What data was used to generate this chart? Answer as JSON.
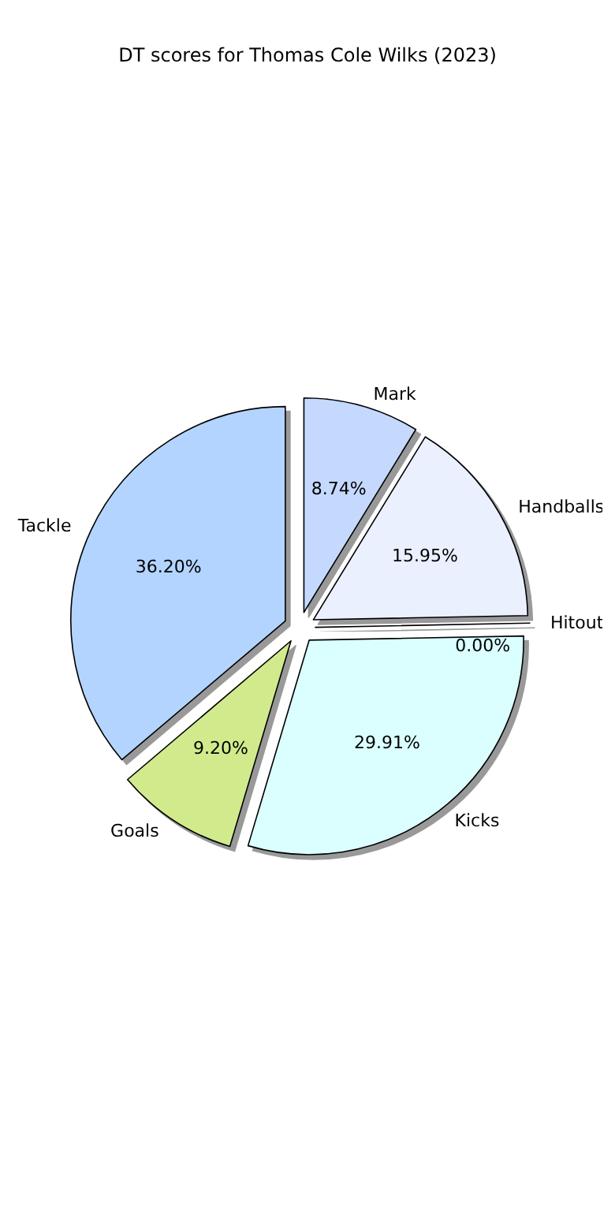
{
  "chart_data": {
    "type": "pie",
    "title": "DT scores for Thomas Cole Wilks (2023)",
    "categories": [
      "Mark",
      "Handballs",
      "Hitout",
      "Kicks",
      "Goals",
      "Tackle"
    ],
    "values": [
      8.74,
      15.95,
      0.0,
      29.91,
      9.2,
      36.2
    ],
    "colors": [
      "#c5d9ff",
      "#ebf0ff",
      "#e6f2ff",
      "#dbffff",
      "#d1eb8c",
      "#b3d4ff"
    ],
    "value_labels": [
      "8.74%",
      "15.95%",
      "0.00%",
      "29.91%",
      "9.20%",
      "36.20%"
    ],
    "legend": false
  }
}
